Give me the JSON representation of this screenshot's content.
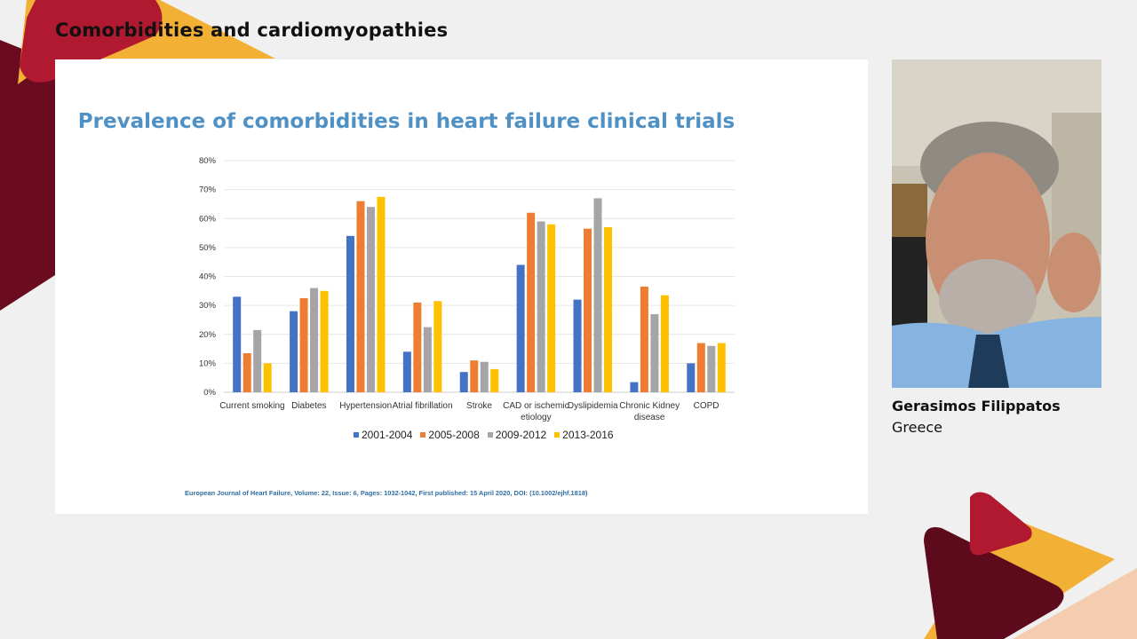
{
  "header": {
    "title": "Comorbidities and cardiomyopathies"
  },
  "slide": {
    "title": "Prevalence of comorbidities in heart failure clinical trials",
    "citation": "European Journal of Heart Failure, Volume: 22, Issue: 6, Pages: 1032-1042, First published: 15 April 2020, DOI: (10.1002/ejhf.1818)"
  },
  "speaker": {
    "name": "Gerasimos Filippatos",
    "country": "Greece"
  },
  "colors": {
    "title": "#4f91c4",
    "brand_red": "#b0192f",
    "brand_dark": "#5c0a1c",
    "brand_yellow": "#f2b134"
  },
  "chart_data": {
    "type": "bar",
    "categories": [
      "Current smoking",
      "Diabetes",
      "Hypertension",
      "Atrial fibrillation",
      "Stroke",
      "CAD or ischemic etiology",
      "Dyslipidemia",
      "Chronic Kidney disease",
      "COPD"
    ],
    "category_lines": [
      [
        "Current smoking"
      ],
      [
        "Diabetes"
      ],
      [
        "Hypertension"
      ],
      [
        "Atrial fibrillation"
      ],
      [
        "Stroke"
      ],
      [
        "CAD or ischemic",
        "etiology"
      ],
      [
        "Dyslipidemia"
      ],
      [
        "Chronic Kidney",
        "disease"
      ],
      [
        "COPD"
      ]
    ],
    "series": [
      {
        "name": "2001-2004",
        "color": "#4472c4",
        "values": [
          33,
          28,
          54,
          14,
          7,
          44,
          32,
          3.5,
          10
        ]
      },
      {
        "name": "2005-2008",
        "color": "#ed7d31",
        "values": [
          13.5,
          32.5,
          66,
          31,
          11,
          62,
          56.5,
          36.5,
          17
        ]
      },
      {
        "name": "2009-2012",
        "color": "#a5a5a5",
        "values": [
          21.5,
          36,
          64,
          22.5,
          10.5,
          59,
          67,
          27,
          16
        ]
      },
      {
        "name": "2013-2016",
        "color": "#ffc000",
        "values": [
          10,
          35,
          67.5,
          31.5,
          8,
          58,
          57,
          33.5,
          17
        ]
      }
    ],
    "ylim": [
      0,
      80
    ],
    "yticks": [
      0,
      10,
      20,
      30,
      40,
      50,
      60,
      70,
      80
    ],
    "ytick_labels": [
      "0%",
      "10%",
      "20%",
      "30%",
      "40%",
      "50%",
      "60%",
      "70%",
      "80%"
    ],
    "grid": true,
    "legend_position": "bottom"
  }
}
